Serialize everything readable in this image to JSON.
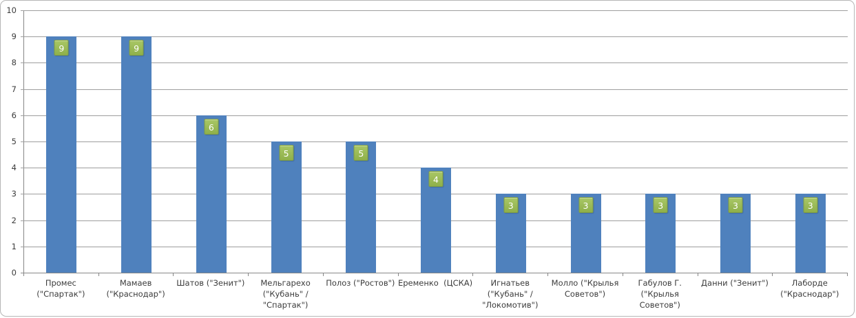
{
  "chart_data": {
    "type": "bar",
    "title": "",
    "legend": "none",
    "grid": true,
    "categories": [
      "Промес (\"Спартак\")",
      "Мамаев (\"Краснодар\")",
      "Шатов (\"Зенит\")",
      "Мельгарехо (\"Кубань\" / \"Спартак\")",
      "Полоз (\"Ростов\")",
      "Еременко (ЦСКА)",
      "Игнатьев (\"Кубань\" / \"Локомотив\")",
      "Молло (\"Крылья Советов\")",
      "Габулов Г. (\"Крылья Советов\")",
      "Данни (\"Зенит\")",
      "Лаборде (\"Краснодар\")"
    ],
    "category_label_lines": [
      [
        "Промес",
        "(\"Спартак\")"
      ],
      [
        "Мамаев",
        "(\"Краснодар\")"
      ],
      [
        "Шатов (\"Зенит\")"
      ],
      [
        "Мельгарехо",
        "(\"Кубань\" /",
        "\"Спартак\")"
      ],
      [
        "Полоз (\"Ростов\")"
      ],
      [
        "Еременко  (ЦСКА)"
      ],
      [
        "Игнатьев",
        "(\"Кубань\" /",
        "\"Локомотив\")"
      ],
      [
        "Молло (\"Крылья",
        "Советов\")"
      ],
      [
        "Габулов Г.",
        "(\"Крылья",
        "Советов\")"
      ],
      [
        "Данни (\"Зенит\")"
      ],
      [
        "Лаборде",
        "(\"Краснодар\")"
      ]
    ],
    "values": [
      9,
      9,
      6,
      5,
      5,
      4,
      3,
      3,
      3,
      3,
      3
    ],
    "ylim": [
      0,
      10
    ],
    "ytick_step": 1,
    "ytick_labels": [
      "0",
      "1",
      "2",
      "3",
      "4",
      "5",
      "6",
      "7",
      "8",
      "9",
      "10"
    ],
    "colors": {
      "bar": "#4f81bd",
      "value_label_fill_top": "#a9c766",
      "value_label_fill_bottom": "#8fb04a",
      "value_label_border": "#7f9d44",
      "value_label_text": "#ffffff",
      "gridline": "#9d9d9d",
      "axis": "#868686",
      "tick_text": "#3b3b3b",
      "frame_border": "#b5b5b5",
      "background": "#ffffff"
    }
  }
}
